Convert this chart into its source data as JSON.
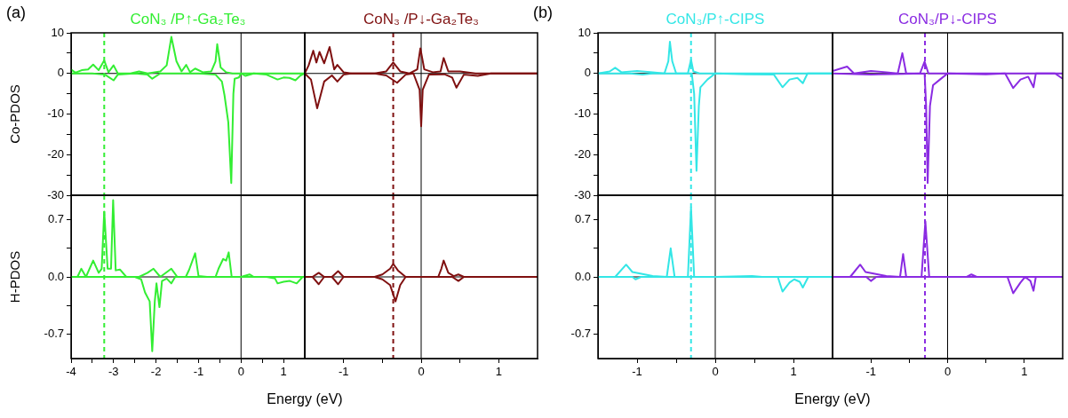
{
  "chart_data": [
    {
      "type": "line",
      "title": "CoN₃ /P↑-Ga₂Te₃",
      "ylabel": "Co-PDOS",
      "annotations": [
        "(a)"
      ],
      "marker": "none",
      "tick_labels": "y",
      "xlim": [
        -4,
        1.5
      ],
      "ylim": [
        -30,
        10
      ],
      "yticks": [
        10,
        {
          "value": 5,
          "label": null
        },
        0,
        {
          "value": -5,
          "label": null
        },
        -10,
        {
          "value": -15,
          "label": null
        },
        -20,
        {
          "value": -25,
          "label": null
        },
        -30
      ],
      "ref_lines": [
        {
          "axis": "y",
          "value": 0,
          "color": "#000000"
        },
        {
          "axis": "x",
          "value": 0,
          "color": "#000000"
        },
        {
          "axis": "x",
          "value": -3.22,
          "color": "#33ee33",
          "line_style": "dashed"
        }
      ],
      "series": [
        {
          "color": "#33ee33",
          "x": [
            -4,
            -3.9,
            -3.75,
            -3.6,
            -3.48,
            -3.35,
            -3.22,
            -3.12,
            -3.0,
            -2.9,
            -2.6,
            -2.4,
            -2.2,
            -1.9,
            -1.75,
            -1.64,
            -1.52,
            -1.4,
            -1.29,
            -1.2,
            -1.08,
            -0.9,
            -0.7,
            -0.6,
            -0.56,
            -0.48,
            -0.35,
            -0.2,
            0,
            0.5,
            1,
            1.5
          ],
          "values": [
            1,
            0.2,
            0.8,
            1,
            2.2,
            0.8,
            3.2,
            0.3,
            2,
            0,
            0,
            0.5,
            0,
            0.5,
            2,
            9,
            3,
            0.5,
            2.1,
            0.3,
            1.2,
            0.3,
            0.5,
            3,
            7.2,
            1.5,
            0.3,
            0,
            0,
            0,
            0,
            0
          ]
        },
        {
          "color": "#33ee33",
          "x": [
            -4,
            -3.5,
            -3.2,
            -3.0,
            -2.9,
            -2.5,
            -2.2,
            -2.09,
            -1.9,
            -1.5,
            -1.0,
            -0.6,
            -0.45,
            -0.39,
            -0.3,
            -0.23,
            -0.18,
            -0.15,
            -0.05,
            0,
            0.1,
            0.3,
            0.6,
            0.86,
            1.0,
            1.14,
            1.28,
            1.4,
            1.5
          ],
          "values": [
            0,
            0,
            -0.3,
            -1.7,
            -0.3,
            0,
            -0.3,
            -1.3,
            0,
            0,
            0,
            -0.3,
            -2,
            -5.3,
            -12,
            -27,
            -5,
            -1.3,
            -1,
            0,
            -0.6,
            0,
            -0.3,
            -1.5,
            -1,
            -1.1,
            -1.7,
            -0.5,
            0
          ]
        }
      ]
    },
    {
      "type": "line",
      "title": "CoN₃ /P↓-Ga₂Te₃",
      "marker": "none",
      "tick_labels": false,
      "xlim": [
        -1.5,
        1.5
      ],
      "ylim": [
        -30,
        10
      ],
      "ref_lines": [
        {
          "axis": "y",
          "value": 0,
          "color": "#000000"
        },
        {
          "axis": "x",
          "value": 0,
          "color": "#000000"
        },
        {
          "axis": "x",
          "value": -0.36,
          "color": "#7f1010",
          "line_style": "dashed"
        }
      ],
      "series": [
        {
          "color": "#7f1010",
          "x": [
            -1.5,
            -1.45,
            -1.39,
            -1.35,
            -1.31,
            -1.25,
            -1.18,
            -1.12,
            -1.08,
            -1.0,
            -0.9,
            -0.6,
            -0.45,
            -0.36,
            -0.27,
            -0.15,
            -0.05,
            -0.01,
            0.04,
            0.15,
            0.25,
            0.29,
            0.35,
            0.5,
            0.7,
            1,
            1.5
          ],
          "values": [
            0,
            2,
            5.6,
            2.7,
            5.3,
            2.5,
            6.5,
            1,
            2.1,
            0.3,
            0,
            0,
            0.5,
            2.7,
            0.5,
            0,
            1,
            6.2,
            1,
            0.3,
            0.5,
            3.8,
            0.5,
            0.5,
            0,
            0,
            0
          ]
        },
        {
          "color": "#7f1010",
          "x": [
            -1.5,
            -1.42,
            -1.34,
            -1.25,
            -1.15,
            -1.08,
            -1.0,
            -0.9,
            -0.6,
            -0.45,
            -0.31,
            -0.2,
            -0.1,
            -0.02,
            0,
            0.02,
            0.1,
            0.3,
            0.4,
            0.455,
            0.55,
            0.73,
            0.9,
            1.5
          ],
          "values": [
            0,
            -1.5,
            -8.6,
            -2,
            -0.5,
            -2,
            -0.3,
            0,
            0,
            -0.5,
            -2.3,
            -0.3,
            0,
            -4,
            -13,
            -4,
            -0.3,
            -0.2,
            -1,
            -3.5,
            -0.3,
            -0.6,
            0,
            0
          ]
        }
      ]
    },
    {
      "type": "line",
      "title": "CoN₃/P↑-CIPS",
      "annotations": [
        "(b)"
      ],
      "marker": "none",
      "tick_labels": "y",
      "xlim": [
        -1.5,
        1.5
      ],
      "ylim": [
        -30,
        10
      ],
      "yticks": [
        10,
        {
          "value": 5,
          "label": null
        },
        0,
        {
          "value": -5,
          "label": null
        },
        -10,
        {
          "value": -15,
          "label": null
        },
        -20,
        {
          "value": -25,
          "label": null
        },
        -30
      ],
      "ref_lines": [
        {
          "axis": "y",
          "value": 0,
          "color": "#000000"
        },
        {
          "axis": "x",
          "value": 0,
          "color": "#000000"
        },
        {
          "axis": "x",
          "value": -0.31,
          "color": "#33e6e6",
          "line_style": "dashed"
        }
      ],
      "series": [
        {
          "color": "#33e6e6",
          "x": [
            -1.5,
            -1.35,
            -1.28,
            -1.2,
            -1.0,
            -0.8,
            -0.65,
            -0.6,
            -0.58,
            -0.55,
            -0.5,
            -0.35,
            -0.31,
            -0.28,
            -0.2,
            0,
            0.5,
            1,
            1.5
          ],
          "values": [
            0,
            0.5,
            1.4,
            0.3,
            0.6,
            0.3,
            0,
            3,
            7.8,
            3,
            0,
            0,
            3.4,
            0.5,
            0,
            0,
            0,
            0,
            0
          ]
        },
        {
          "color": "#33e6e6",
          "x": [
            -1.5,
            -1.1,
            -0.93,
            -0.8,
            -0.3,
            -0.27,
            -0.24,
            -0.21,
            -0.19,
            -0.1,
            0,
            0.4,
            0.75,
            0.86,
            0.95,
            1.05,
            1.12,
            1.18,
            1.5
          ],
          "values": [
            0,
            0,
            -0.3,
            0,
            0,
            -5,
            -24,
            -8,
            -3.4,
            -1.5,
            0,
            -0.2,
            -0.3,
            -3.4,
            -1.5,
            -1.1,
            -2.4,
            0,
            0
          ]
        }
      ]
    },
    {
      "type": "line",
      "title": "CoN₃/P↓-CIPS",
      "marker": "none",
      "tick_labels": false,
      "xlim": [
        -1.5,
        1.5
      ],
      "ylim": [
        -30,
        10
      ],
      "ref_lines": [
        {
          "axis": "y",
          "value": 0,
          "color": "#000000"
        },
        {
          "axis": "x",
          "value": 0,
          "color": "#000000"
        },
        {
          "axis": "x",
          "value": -0.295,
          "color": "#8a2be2",
          "line_style": "dashed"
        }
      ],
      "series": [
        {
          "color": "#8a2be2",
          "x": [
            -1.5,
            -1.31,
            -1.22,
            -1.0,
            -0.8,
            -0.65,
            -0.59,
            -0.54,
            -0.36,
            -0.3,
            -0.25,
            0,
            1.5
          ],
          "values": [
            0.6,
            1.7,
            0,
            0.6,
            0.3,
            0,
            5,
            0,
            0,
            2.9,
            0,
            0,
            0
          ]
        },
        {
          "color": "#8a2be2",
          "x": [
            -1.5,
            -1.0,
            -0.9,
            -0.3,
            -0.28,
            -0.26,
            -0.23,
            -0.19,
            -0.1,
            0,
            0.5,
            0.75,
            0.855,
            0.95,
            1.05,
            1.12,
            1.15,
            1.4,
            1.5
          ],
          "values": [
            0,
            -0.3,
            -0.2,
            0,
            -8,
            -27,
            -8,
            -2.9,
            -1.5,
            0,
            -0.2,
            0,
            -3.6,
            -1.5,
            -0.8,
            -3.4,
            0,
            0,
            -1.3
          ]
        }
      ]
    },
    {
      "type": "line",
      "ylabel": "H-PDOS",
      "xlabel": "Energy (eV)",
      "marker": "none",
      "xlim": [
        -4,
        1.5
      ],
      "ylim": [
        -1,
        1
      ],
      "xticks": [
        -4,
        {
          "value": -3.5,
          "label": null
        },
        -3,
        {
          "value": -2.5,
          "label": null
        },
        -2,
        {
          "value": -1.5,
          "label": null
        },
        -1,
        {
          "value": -0.5,
          "label": null
        },
        0,
        {
          "value": 0.5,
          "label": null
        },
        1
      ],
      "yticks": [
        0.7,
        {
          "value": 0.35,
          "label": null
        },
        {
          "value": 0,
          "label": "0.0"
        },
        {
          "value": -0.35,
          "label": null
        },
        -0.7
      ],
      "ref_lines": [
        {
          "axis": "y",
          "value": 0,
          "color": "#000000"
        },
        {
          "axis": "x",
          "value": 0,
          "color": "#000000"
        },
        {
          "axis": "x",
          "value": -3.22,
          "color": "#33ee33",
          "line_style": "dashed"
        }
      ],
      "series": [
        {
          "color": "#33ee33",
          "x": [
            -4,
            -3.85,
            -3.76,
            -3.65,
            -3.48,
            -3.35,
            -3.28,
            -3.22,
            -3.14,
            -3.06,
            -3.01,
            -2.95,
            -2.85,
            -2.7,
            -2.4,
            -2.2,
            -2.06,
            -1.9,
            -1.64,
            -1.5,
            -1.3,
            -1.22,
            -1.08,
            -1.0,
            -0.8,
            -0.6,
            -0.53,
            -0.42,
            -0.35,
            -0.29,
            -0.22,
            0,
            0.2,
            0.3,
            1.5
          ],
          "values": [
            0,
            0,
            0.1,
            0,
            0.2,
            0.05,
            0.1,
            0.8,
            0.1,
            0.1,
            0.94,
            0.08,
            0.09,
            0,
            0,
            0.05,
            0.1,
            0,
            0.1,
            0,
            0,
            0.09,
            0.29,
            0.01,
            0,
            0,
            0.1,
            0.22,
            0.2,
            0.3,
            0,
            0,
            0.03,
            0,
            0
          ]
        },
        {
          "color": "#33ee33",
          "x": [
            -4,
            -2.5,
            -2.35,
            -2.26,
            -2.15,
            -2.09,
            -2.03,
            -1.99,
            -1.92,
            -1.86,
            -1.75,
            -1.64,
            -1.55,
            -1.4,
            0.6,
            0.8,
            0.86,
            1.0,
            1.15,
            1.31,
            1.45,
            1.5
          ],
          "values": [
            0,
            0,
            -0.03,
            -0.19,
            -0.3,
            -0.91,
            -0.3,
            -0.08,
            -0.37,
            -0.05,
            -0.02,
            -0.08,
            0,
            0,
            0,
            -0.02,
            -0.08,
            -0.06,
            -0.05,
            -0.08,
            0,
            0
          ]
        }
      ]
    },
    {
      "type": "line",
      "marker": "none",
      "tick_labels": "x",
      "xlim": [
        -1.5,
        1.5
      ],
      "ylim": [
        -1,
        1
      ],
      "xticks": [
        -1,
        {
          "value": -0.5,
          "label": null
        },
        0,
        {
          "value": 0.5,
          "label": null
        },
        1
      ],
      "ref_lines": [
        {
          "axis": "y",
          "value": 0,
          "color": "#000000"
        },
        {
          "axis": "x",
          "value": 0,
          "color": "#000000"
        },
        {
          "axis": "x",
          "value": -0.36,
          "color": "#7f1010",
          "line_style": "dashed"
        }
      ],
      "series": [
        {
          "color": "#7f1010",
          "x": [
            -1.5,
            -1.4,
            -1.32,
            -1.25,
            -1.15,
            -1.07,
            -1.0,
            -0.6,
            -0.5,
            -0.4,
            -0.36,
            -0.3,
            -0.2,
            0,
            0.22,
            0.26,
            0.29,
            0.35,
            0.42,
            0.48,
            0.55,
            1.5
          ],
          "values": [
            0,
            0,
            0.05,
            0,
            0,
            0.07,
            0,
            0,
            0.03,
            0.1,
            0.16,
            0.08,
            0,
            0,
            0,
            0.1,
            0.2,
            0.05,
            0.01,
            0.03,
            0,
            0
          ]
        },
        {
          "color": "#7f1010",
          "x": [
            -1.5,
            -1.4,
            -1.32,
            -1.25,
            -1.15,
            -1.07,
            -1.0,
            -0.6,
            -0.5,
            -0.4,
            -0.33,
            -0.27,
            -0.2,
            0,
            0.4,
            0.48,
            0.55,
            1.5
          ],
          "values": [
            0,
            0,
            -0.09,
            0,
            0,
            -0.09,
            0,
            0,
            -0.03,
            -0.1,
            -0.3,
            -0.1,
            0,
            0,
            0,
            -0.05,
            0,
            0
          ]
        }
      ]
    },
    {
      "type": "line",
      "xlabel": "Energy (eV)",
      "marker": "none",
      "xlim": [
        -1.5,
        1.5
      ],
      "ylim": [
        -1,
        1
      ],
      "xticks": [
        -1,
        {
          "value": -0.5,
          "label": null
        },
        0,
        {
          "value": 0.5,
          "label": null
        },
        1
      ],
      "yticks": [
        0.7,
        {
          "value": 0.35,
          "label": null
        },
        {
          "value": 0,
          "label": "0.0"
        },
        {
          "value": -0.35,
          "label": null
        },
        -0.7
      ],
      "ref_lines": [
        {
          "axis": "y",
          "value": 0,
          "color": "#000000"
        },
        {
          "axis": "x",
          "value": 0,
          "color": "#000000"
        },
        {
          "axis": "x",
          "value": -0.31,
          "color": "#33e6e6",
          "line_style": "dashed"
        }
      ],
      "series": [
        {
          "color": "#33e6e6",
          "x": [
            -1.5,
            -1.28,
            -1.14,
            -1.06,
            -0.8,
            -0.62,
            -0.57,
            -0.52,
            -0.35,
            -0.31,
            -0.27,
            0,
            0.47,
            0.6,
            1.5
          ],
          "values": [
            0,
            0,
            0.15,
            0.06,
            0.01,
            0,
            0.35,
            0,
            0,
            0.85,
            0,
            0,
            0.01,
            0,
            0
          ]
        },
        {
          "color": "#33e6e6",
          "x": [
            -1.5,
            -1.06,
            -1.02,
            -0.95,
            0.8,
            0.86,
            0.95,
            1.01,
            1.08,
            1.12,
            1.19,
            1.5
          ],
          "values": [
            0,
            0,
            -0.03,
            0,
            0,
            -0.18,
            -0.07,
            -0.03,
            -0.06,
            -0.13,
            0,
            0
          ]
        }
      ]
    },
    {
      "type": "line",
      "marker": "none",
      "tick_labels": "x",
      "xlim": [
        -1.5,
        1.5
      ],
      "ylim": [
        -1,
        1
      ],
      "xticks": [
        -1,
        {
          "value": -0.5,
          "label": null
        },
        0,
        {
          "value": 0.5,
          "label": null
        },
        1
      ],
      "ref_lines": [
        {
          "axis": "y",
          "value": 0,
          "color": "#000000"
        },
        {
          "axis": "x",
          "value": 0,
          "color": "#000000"
        },
        {
          "axis": "x",
          "value": -0.295,
          "color": "#8a2be2",
          "line_style": "dashed"
        }
      ],
      "series": [
        {
          "color": "#8a2be2",
          "x": [
            -1.5,
            -1.27,
            -1.14,
            -1.07,
            -0.8,
            -0.62,
            -0.58,
            -0.54,
            -0.34,
            -0.29,
            -0.24,
            0,
            0.25,
            0.31,
            0.38,
            1.5
          ],
          "values": [
            0,
            0,
            0.15,
            0.06,
            0.01,
            0,
            0.28,
            0,
            0,
            0.68,
            0,
            0,
            0,
            0.03,
            0,
            0
          ]
        },
        {
          "color": "#8a2be2",
          "x": [
            -1.5,
            -1.06,
            -1.0,
            -0.93,
            0.78,
            0.855,
            0.95,
            1.01,
            1.08,
            1.12,
            1.15,
            1.5
          ],
          "values": [
            0,
            0,
            -0.05,
            0,
            0,
            -0.2,
            -0.07,
            0,
            -0.05,
            -0.17,
            0,
            0
          ]
        }
      ]
    }
  ]
}
